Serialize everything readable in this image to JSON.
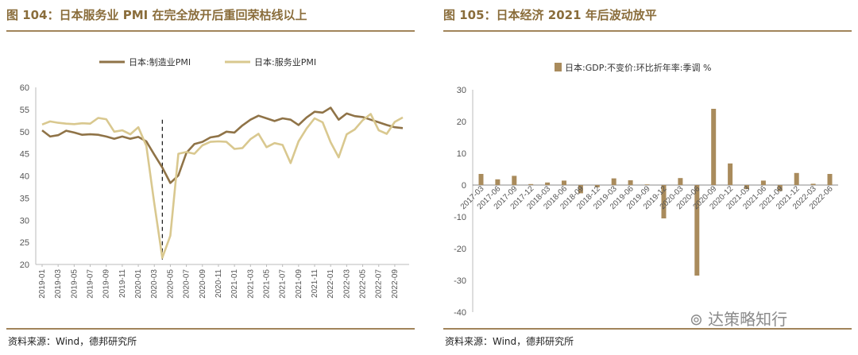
{
  "left": {
    "title": "图 104：日本服务业 PMI 在完全放开后重回荣枯线以上",
    "source": "资料来源：Wind，德邦研究所"
  },
  "right": {
    "title": "图 105：日本经济 2021 年后波动放平",
    "source": "资料来源：Wind，德邦研究所",
    "watermark": "达策略知行"
  },
  "colors": {
    "manufacturing": "#8f7347",
    "services": "#d9c88f",
    "bar": "#a98b5c",
    "rule": "#a1845a",
    "title": "#8a6d3b"
  },
  "chart_data": [
    {
      "type": "line",
      "title": "",
      "ylim": [
        20,
        60
      ],
      "yticks": [
        20,
        25,
        30,
        35,
        40,
        45,
        50,
        55,
        60
      ],
      "x_tick_labels": [
        "2019-01",
        "2019-03",
        "2019-05",
        "2019-07",
        "2019-09",
        "2019-11",
        "2020-01",
        "2020-03",
        "2020-05",
        "2020-07",
        "2020-09",
        "2020-11",
        "2021-01",
        "2021-03",
        "2021-05",
        "2021-07",
        "2021-09",
        "2021-11",
        "2022-01",
        "2022-03",
        "2022-05",
        "2022-07",
        "2022-09"
      ],
      "x_start": "2019-01",
      "reference_line": "2020-04",
      "series": [
        {
          "name": "日本:制造业PMI",
          "values": [
            50.3,
            48.9,
            49.2,
            50.2,
            49.8,
            49.3,
            49.4,
            49.3,
            48.9,
            48.4,
            48.9,
            48.4,
            48.8,
            47.8,
            44.8,
            41.9,
            38.4,
            40.1,
            45.2,
            47.2,
            47.7,
            48.7,
            49.0,
            50.0,
            49.8,
            51.4,
            52.7,
            53.6,
            53.0,
            52.4,
            53.0,
            52.7,
            51.5,
            53.2,
            54.5,
            54.3,
            55.4,
            52.7,
            54.1,
            53.5,
            53.3,
            52.7,
            52.1,
            51.5,
            51.0,
            50.8
          ]
        },
        {
          "name": "日本:服务业PMI",
          "values": [
            51.6,
            52.3,
            52.0,
            51.8,
            51.7,
            51.9,
            51.8,
            53.1,
            52.8,
            50.0,
            50.3,
            49.4,
            51.0,
            46.8,
            33.8,
            21.5,
            26.5,
            45.0,
            45.4,
            45.0,
            46.9,
            47.7,
            47.8,
            47.7,
            46.1,
            46.3,
            48.3,
            49.5,
            46.5,
            47.4,
            47.0,
            42.9,
            47.8,
            50.7,
            53.0,
            52.1,
            47.6,
            44.2,
            49.4,
            50.5,
            52.6,
            54.0,
            50.3,
            49.5,
            52.2,
            53.2
          ]
        }
      ]
    },
    {
      "type": "bar",
      "title": "",
      "series_name": "日本:GDP:不变价:环比折年率:季调 %",
      "ylim": [
        -40,
        30
      ],
      "yticks": [
        30,
        20,
        10,
        0,
        -10,
        -20,
        -30,
        -40
      ],
      "x_tick_labels": [
        "2017-03",
        "2017-06",
        "2017-09",
        "2017-12",
        "2018-03",
        "2018-06",
        "2018-09",
        "2018-12",
        "2019-03",
        "2019-06",
        "2019-09",
        "2019-12",
        "2020-03",
        "2020-06",
        "2020-09",
        "2020-12",
        "2021-03",
        "2021-06",
        "2021-09",
        "2021-12",
        "2022-03",
        "2022-06"
      ],
      "values": [
        3.5,
        1.8,
        2.9,
        0.3,
        0.8,
        1.4,
        -2.6,
        -0.7,
        2.1,
        1.5,
        0.2,
        -10.5,
        2.2,
        -28.5,
        24.0,
        6.8,
        -1.3,
        1.4,
        -1.9,
        3.8,
        0.4,
        3.5
      ]
    }
  ]
}
